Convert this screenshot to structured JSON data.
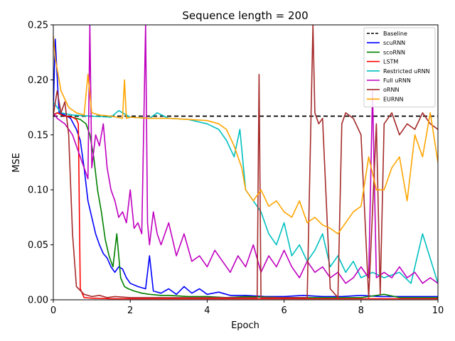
{
  "chart_data": {
    "type": "line",
    "title": "Sequence length = 200",
    "xlabel": "Epoch",
    "ylabel": "MSE",
    "xlim": [
      0,
      10
    ],
    "ylim": [
      0,
      0.25
    ],
    "xticks": [
      0,
      2,
      4,
      6,
      8,
      10
    ],
    "yticks": [
      0.0,
      0.05,
      0.1,
      0.15,
      0.2,
      0.25
    ],
    "xtick_labels": [
      "0",
      "2",
      "4",
      "6",
      "8",
      "10"
    ],
    "ytick_labels": [
      "0.00",
      "0.05",
      "0.10",
      "0.15",
      "0.20",
      "0.25"
    ],
    "legend_position": "top-right",
    "series": [
      {
        "name": "Baseline",
        "color": "#000000",
        "dashed": true,
        "x": [
          0,
          10
        ],
        "y": [
          0.167,
          0.167
        ]
      },
      {
        "name": "scuRNN",
        "color": "#0000ff",
        "x": [
          0,
          0.05,
          0.15,
          0.3,
          0.45,
          0.6,
          0.7,
          0.8,
          0.9,
          1.0,
          1.1,
          1.2,
          1.3,
          1.4,
          1.5,
          1.6,
          1.7,
          1.8,
          1.9,
          2.0,
          2.2,
          2.4,
          2.5,
          2.6,
          2.8,
          3.0,
          3.2,
          3.4,
          3.6,
          3.8,
          4.0,
          4.3,
          4.6,
          5.0,
          5.5,
          6.0,
          6.5,
          7.0,
          7.5,
          8.0,
          8.5,
          9.0,
          9.5,
          10.0
        ],
        "y": [
          0.175,
          0.237,
          0.17,
          0.168,
          0.165,
          0.155,
          0.145,
          0.12,
          0.09,
          0.075,
          0.06,
          0.05,
          0.042,
          0.038,
          0.03,
          0.025,
          0.03,
          0.028,
          0.02,
          0.015,
          0.012,
          0.01,
          0.04,
          0.008,
          0.006,
          0.01,
          0.005,
          0.012,
          0.006,
          0.01,
          0.005,
          0.007,
          0.004,
          0.004,
          0.003,
          0.003,
          0.004,
          0.003,
          0.003,
          0.004,
          0.003,
          0.003,
          0.003,
          0.003
        ]
      },
      {
        "name": "scoRNN",
        "color": "#008000",
        "x": [
          0,
          0.1,
          0.3,
          0.5,
          0.7,
          0.85,
          0.95,
          1.05,
          1.15,
          1.25,
          1.35,
          1.45,
          1.55,
          1.65,
          1.75,
          1.85,
          1.95,
          2.1,
          2.3,
          2.5,
          2.8,
          3.0,
          3.5,
          4.0,
          4.5,
          5.0,
          6.0,
          7.0,
          8.0,
          8.6,
          9.0,
          10.0
        ],
        "y": [
          0.168,
          0.17,
          0.167,
          0.166,
          0.164,
          0.16,
          0.15,
          0.13,
          0.1,
          0.08,
          0.055,
          0.04,
          0.03,
          0.06,
          0.02,
          0.012,
          0.01,
          0.008,
          0.006,
          0.005,
          0.004,
          0.004,
          0.003,
          0.003,
          0.002,
          0.003,
          0.002,
          0.002,
          0.002,
          0.005,
          0.002,
          0.002
        ]
      },
      {
        "name": "LSTM",
        "color": "#ff0000",
        "x": [
          0,
          0.1,
          0.3,
          0.5,
          0.6,
          0.65,
          0.7,
          0.8,
          1.0,
          1.5,
          2.0,
          3.0,
          4.0,
          5.0,
          6.0,
          7.0,
          8.0,
          9.0,
          10.0
        ],
        "y": [
          0.168,
          0.17,
          0.167,
          0.166,
          0.164,
          0.16,
          0.01,
          0.002,
          0.0015,
          0.001,
          0.001,
          0.001,
          0.001,
          0.001,
          0.001,
          0.001,
          0.001,
          0.001,
          0.001
        ]
      },
      {
        "name": "Restricted uRNN",
        "color": "#00bfbf",
        "x": [
          0,
          0.2,
          0.5,
          1.0,
          1.5,
          1.7,
          2.0,
          2.5,
          2.7,
          3.0,
          3.5,
          4.0,
          4.3,
          4.5,
          4.7,
          4.85,
          5.0,
          5.2,
          5.4,
          5.6,
          5.8,
          6.0,
          6.2,
          6.4,
          6.6,
          6.8,
          7.0,
          7.2,
          7.4,
          7.6,
          7.8,
          8.0,
          8.3,
          8.6,
          9.0,
          9.3,
          9.6,
          10.0
        ],
        "y": [
          0.18,
          0.17,
          0.168,
          0.167,
          0.166,
          0.172,
          0.166,
          0.165,
          0.17,
          0.165,
          0.164,
          0.16,
          0.155,
          0.145,
          0.13,
          0.155,
          0.1,
          0.09,
          0.08,
          0.06,
          0.05,
          0.07,
          0.04,
          0.05,
          0.035,
          0.045,
          0.06,
          0.03,
          0.04,
          0.025,
          0.035,
          0.02,
          0.025,
          0.02,
          0.025,
          0.015,
          0.06,
          0.015
        ]
      },
      {
        "name": "Full uRNN",
        "color": "#bf00bf",
        "x": [
          0,
          0.1,
          0.3,
          0.5,
          0.7,
          0.8,
          0.9,
          0.95,
          1.0,
          1.1,
          1.2,
          1.3,
          1.4,
          1.5,
          1.6,
          1.7,
          1.8,
          1.9,
          2.0,
          2.1,
          2.2,
          2.3,
          2.4,
          2.45,
          2.5,
          2.6,
          2.7,
          2.8,
          3.0,
          3.2,
          3.4,
          3.6,
          3.8,
          4.0,
          4.2,
          4.4,
          4.6,
          4.8,
          5.0,
          5.2,
          5.4,
          5.6,
          5.8,
          6.0,
          6.2,
          6.4,
          6.6,
          6.8,
          7.0,
          7.2,
          7.4,
          7.6,
          7.8,
          8.0,
          8.2,
          8.3,
          8.4,
          8.6,
          8.8,
          9.0,
          9.2,
          9.4,
          9.6,
          9.8,
          10.0
        ],
        "y": [
          0.17,
          0.165,
          0.16,
          0.15,
          0.13,
          0.12,
          0.11,
          0.25,
          0.12,
          0.15,
          0.14,
          0.16,
          0.12,
          0.1,
          0.09,
          0.075,
          0.08,
          0.07,
          0.1,
          0.065,
          0.07,
          0.06,
          0.25,
          0.07,
          0.05,
          0.08,
          0.06,
          0.05,
          0.07,
          0.04,
          0.06,
          0.035,
          0.04,
          0.03,
          0.045,
          0.035,
          0.025,
          0.04,
          0.03,
          0.05,
          0.025,
          0.04,
          0.03,
          0.045,
          0.03,
          0.02,
          0.035,
          0.025,
          0.03,
          0.02,
          0.025,
          0.015,
          0.02,
          0.03,
          0.02,
          0.19,
          0.02,
          0.025,
          0.02,
          0.03,
          0.02,
          0.025,
          0.015,
          0.02,
          0.015
        ]
      },
      {
        "name": "oRNN",
        "color": "#a52a2a",
        "x": [
          0,
          0.1,
          0.2,
          0.3,
          0.4,
          0.5,
          0.6,
          0.8,
          1.0,
          1.2,
          1.4,
          1.6,
          2.0,
          3.0,
          4.0,
          5.0,
          5.3,
          5.35,
          5.4,
          6.0,
          6.6,
          6.75,
          6.8,
          6.9,
          7.0,
          7.2,
          7.4,
          7.5,
          7.6,
          7.8,
          8.0,
          8.2,
          8.4,
          8.5,
          8.6,
          8.8,
          9.0,
          9.2,
          9.4,
          9.6,
          9.8,
          10.0
        ],
        "y": [
          0.168,
          0.19,
          0.17,
          0.18,
          0.15,
          0.06,
          0.012,
          0.005,
          0.003,
          0.004,
          0.002,
          0.003,
          0.002,
          0.002,
          0.002,
          0.002,
          0.002,
          0.205,
          0.002,
          0.002,
          0.002,
          0.25,
          0.17,
          0.16,
          0.165,
          0.01,
          0.002,
          0.16,
          0.17,
          0.165,
          0.15,
          0.002,
          0.16,
          0.005,
          0.16,
          0.17,
          0.15,
          0.16,
          0.155,
          0.17,
          0.16,
          0.155
        ]
      },
      {
        "name": "EURNN",
        "color": "#ffa500",
        "x": [
          0,
          0.05,
          0.2,
          0.4,
          0.6,
          0.8,
          0.9,
          1.0,
          1.2,
          1.5,
          1.8,
          1.85,
          1.9,
          2.0,
          2.5,
          3.0,
          3.5,
          4.0,
          4.3,
          4.5,
          4.7,
          4.9,
          5.0,
          5.2,
          5.4,
          5.6,
          5.8,
          6.0,
          6.2,
          6.4,
          6.6,
          6.8,
          7.0,
          7.2,
          7.4,
          7.6,
          7.8,
          8.0,
          8.2,
          8.4,
          8.6,
          8.8,
          9.0,
          9.2,
          9.4,
          9.6,
          9.8,
          10.0
        ],
        "y": [
          0.24,
          0.22,
          0.19,
          0.175,
          0.17,
          0.168,
          0.205,
          0.17,
          0.168,
          0.167,
          0.165,
          0.2,
          0.165,
          0.166,
          0.165,
          0.165,
          0.164,
          0.163,
          0.16,
          0.155,
          0.14,
          0.12,
          0.1,
          0.09,
          0.1,
          0.085,
          0.09,
          0.08,
          0.075,
          0.09,
          0.07,
          0.075,
          0.068,
          0.065,
          0.06,
          0.07,
          0.08,
          0.085,
          0.13,
          0.1,
          0.1,
          0.12,
          0.13,
          0.09,
          0.15,
          0.13,
          0.17,
          0.125
        ]
      }
    ]
  }
}
